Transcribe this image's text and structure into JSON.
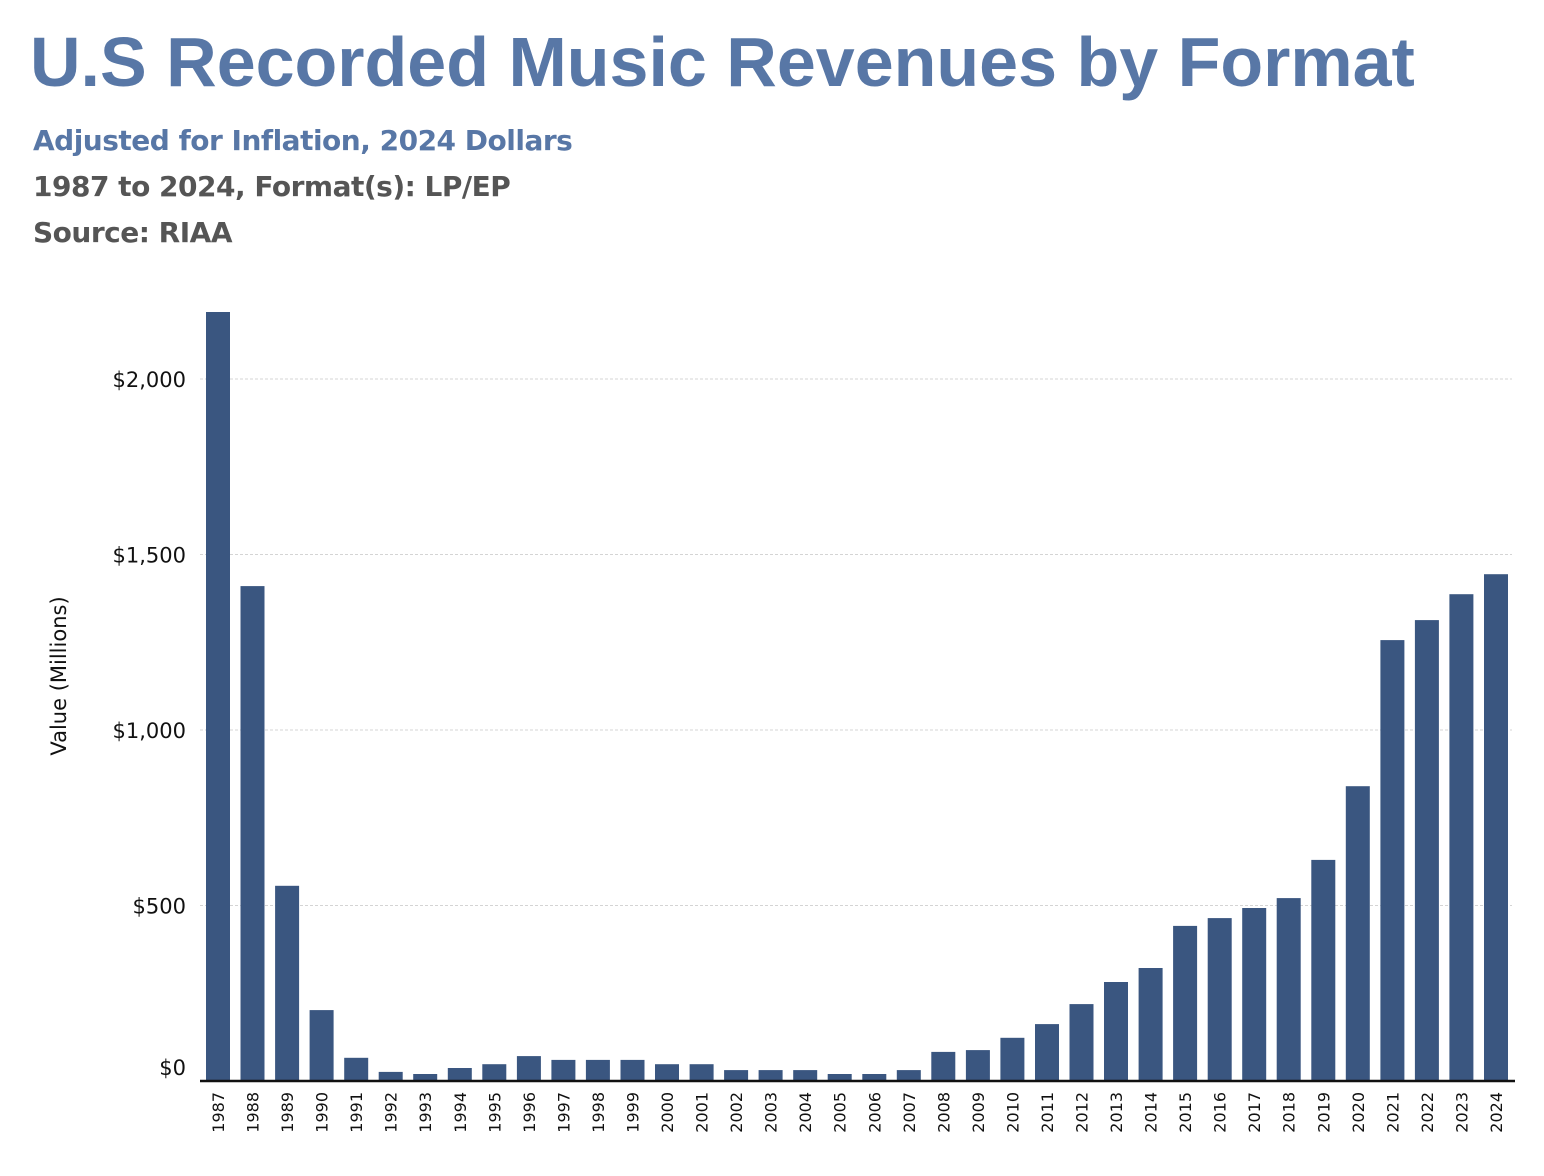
{
  "header": {
    "title": "U.S Recorded Music Revenues by Format",
    "subtitle": "Adjusted for Inflation, 2024 Dollars",
    "range_line": "1987 to 2024, Format(s): LP/EP",
    "source_line": "Source: RIAA"
  },
  "colors": {
    "title": "#5877a6",
    "bar": "#3a5680",
    "text_secondary": "#555555"
  },
  "chart_data": {
    "type": "bar",
    "title": "U.S Recorded Music Revenues by Format",
    "subtitle": "Adjusted for Inflation, 2024 Dollars",
    "xlabel": "",
    "ylabel": "Value (Millions)",
    "ylim": [
      0,
      2200
    ],
    "yticks": [
      0,
      500,
      1000,
      1500,
      2000
    ],
    "ytick_labels": [
      "$0",
      "$500",
      "$1,000",
      "$1,500",
      "$2,000"
    ],
    "grid": true,
    "legend": "none",
    "categories": [
      "1987",
      "1988",
      "1989",
      "1990",
      "1991",
      "1992",
      "1993",
      "1994",
      "1995",
      "1996",
      "1997",
      "1998",
      "1999",
      "2000",
      "2001",
      "2002",
      "2003",
      "2004",
      "2005",
      "2006",
      "2007",
      "2008",
      "2009",
      "2010",
      "2011",
      "2012",
      "2013",
      "2014",
      "2015",
      "2016",
      "2017",
      "2018",
      "2019",
      "2020",
      "2021",
      "2022",
      "2023",
      "2024"
    ],
    "series": [
      {
        "name": "LP/EP",
        "values": [
          2191,
          1410,
          556,
          202,
          66,
          26,
          20,
          37,
          48,
          71,
          60,
          60,
          60,
          48,
          48,
          31,
          31,
          31,
          20,
          20,
          31,
          83,
          88,
          123,
          162,
          219,
          282,
          322,
          442,
          464,
          493,
          521,
          630,
          840,
          1256,
          1313,
          1387,
          1444
        ]
      }
    ]
  }
}
